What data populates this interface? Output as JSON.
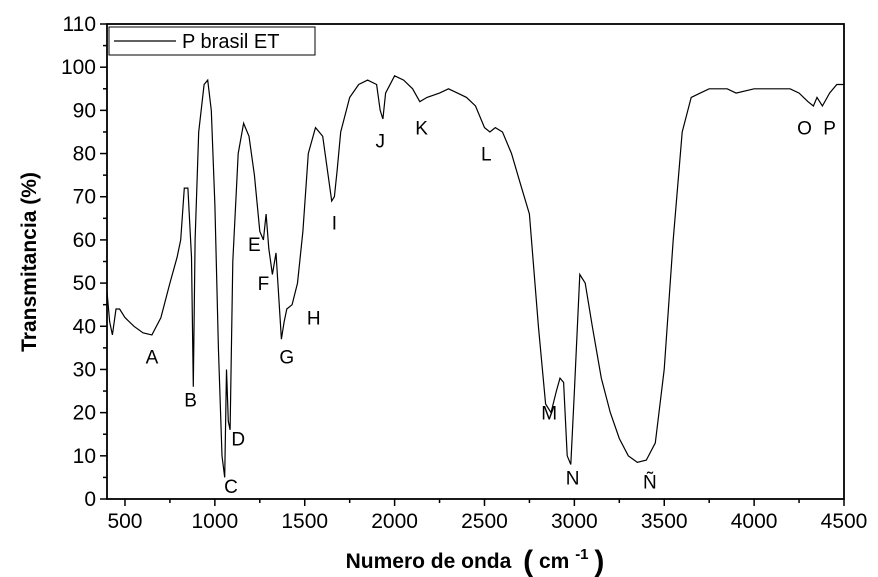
{
  "chart_data": {
    "type": "line",
    "xlabel_main": "Numero de onda",
    "xlabel_paren_open": "(",
    "xlabel_unit_base": "cm",
    "xlabel_unit_exp": "-1",
    "xlabel_paren_close": ")",
    "ylabel": "Transmitancia (%)",
    "xlim": [
      400,
      4500
    ],
    "ylim": [
      0,
      110
    ],
    "xticks": [
      500,
      1000,
      1500,
      2000,
      2500,
      3000,
      3500,
      4000,
      4500
    ],
    "yticks": [
      0,
      10,
      20,
      30,
      40,
      50,
      60,
      70,
      80,
      90,
      100,
      110
    ],
    "grid": false,
    "legend_position": "top-left",
    "series": [
      {
        "name": "P brasil ET",
        "color": "#000000",
        "x": [
          400,
          415,
          430,
          450,
          470,
          500,
          550,
          600,
          650,
          700,
          750,
          790,
          810,
          830,
          850,
          870,
          880,
          890,
          910,
          940,
          960,
          980,
          1000,
          1020,
          1040,
          1055,
          1065,
          1075,
          1085,
          1100,
          1130,
          1160,
          1190,
          1220,
          1250,
          1270,
          1285,
          1300,
          1320,
          1340,
          1355,
          1370,
          1385,
          1400,
          1430,
          1460,
          1490,
          1520,
          1560,
          1600,
          1630,
          1650,
          1665,
          1680,
          1700,
          1750,
          1800,
          1850,
          1900,
          1920,
          1935,
          1950,
          2000,
          2050,
          2100,
          2140,
          2180,
          2250,
          2300,
          2350,
          2400,
          2450,
          2500,
          2530,
          2560,
          2600,
          2650,
          2700,
          2750,
          2800,
          2840,
          2870,
          2900,
          2920,
          2940,
          2960,
          2980,
          3000,
          3030,
          3060,
          3100,
          3150,
          3200,
          3250,
          3300,
          3350,
          3400,
          3450,
          3500,
          3550,
          3600,
          3650,
          3700,
          3750,
          3800,
          3850,
          3900,
          4000,
          4100,
          4200,
          4250,
          4300,
          4330,
          4350,
          4380,
          4420,
          4460,
          4500
        ],
        "y": [
          48,
          41,
          38,
          44,
          44,
          42,
          40,
          38.5,
          38,
          42,
          50,
          56,
          60,
          72,
          72,
          56,
          26,
          60,
          85,
          96,
          97,
          90,
          68,
          35,
          10,
          5,
          30,
          18,
          16,
          55,
          80,
          87,
          84,
          75,
          62,
          60,
          66,
          58,
          52,
          57,
          47,
          37,
          41,
          44,
          45,
          50,
          62,
          80,
          86,
          84,
          75,
          69,
          70,
          76,
          85,
          93,
          96,
          97,
          96,
          90,
          88,
          94,
          98,
          97,
          95,
          92,
          93,
          94,
          95,
          94,
          93,
          91,
          86,
          85,
          86,
          85,
          80,
          73,
          66,
          40,
          22,
          20,
          25,
          28,
          27,
          10,
          8,
          25,
          52,
          50,
          40,
          28,
          20,
          14,
          10,
          8.5,
          9,
          13,
          30,
          60,
          85,
          93,
          94,
          95,
          95,
          95,
          94,
          95,
          95,
          95,
          94,
          92,
          91,
          93,
          91,
          94,
          96,
          96
        ]
      }
    ],
    "annotations": [
      {
        "text": "A",
        "x": 650,
        "y": 33
      },
      {
        "text": "B",
        "x": 865,
        "y": 23
      },
      {
        "text": "C",
        "x": 1090,
        "y": 3
      },
      {
        "text": "D",
        "x": 1130,
        "y": 14
      },
      {
        "text": "E",
        "x": 1220,
        "y": 59
      },
      {
        "text": "F",
        "x": 1270,
        "y": 50
      },
      {
        "text": "G",
        "x": 1400,
        "y": 33
      },
      {
        "text": "H",
        "x": 1550,
        "y": 42
      },
      {
        "text": "I",
        "x": 1665,
        "y": 64
      },
      {
        "text": "J",
        "x": 1920,
        "y": 83
      },
      {
        "text": "K",
        "x": 2150,
        "y": 86
      },
      {
        "text": "L",
        "x": 2510,
        "y": 80
      },
      {
        "text": "M",
        "x": 2860,
        "y": 20
      },
      {
        "text": "N",
        "x": 2990,
        "y": 5
      },
      {
        "text": "Ñ",
        "x": 3420,
        "y": 4
      },
      {
        "text": "O",
        "x": 4280,
        "y": 86
      },
      {
        "text": "P",
        "x": 4420,
        "y": 86
      }
    ]
  }
}
